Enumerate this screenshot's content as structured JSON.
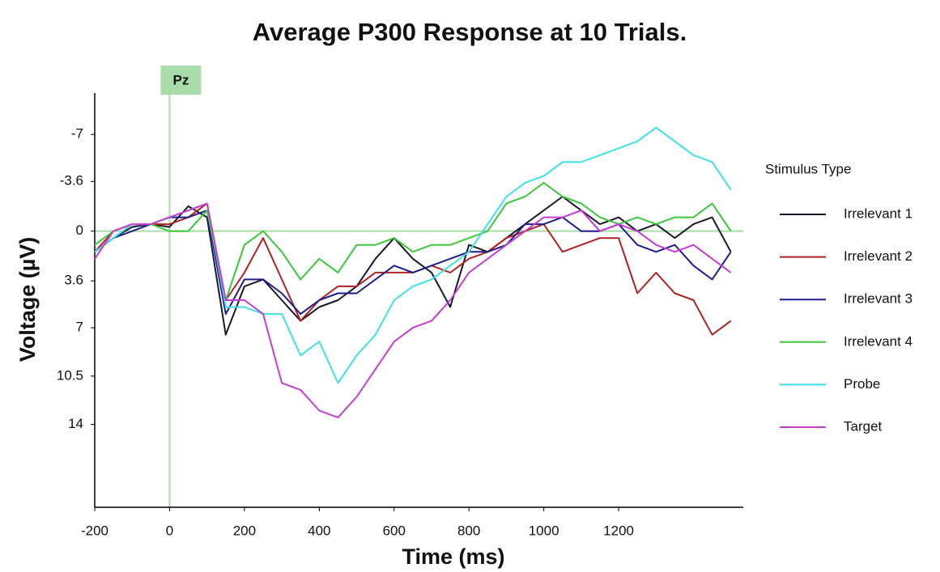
{
  "chart_data": {
    "type": "line",
    "title": "Average P300 Response at 10 Trials.",
    "x_label": "Time (ms)",
    "y_label": "Voltage (µV)",
    "legend_title": "Stimulus Type",
    "legend": "right",
    "annotation": "Pz",
    "vline_x": 0,
    "hline_y": 0,
    "reference_color": "#a8dca8",
    "x": [
      -200,
      -150,
      -100,
      -50,
      0,
      50,
      100,
      150,
      200,
      250,
      300,
      350,
      400,
      450,
      500,
      550,
      600,
      650,
      700,
      750,
      800,
      850,
      900,
      950,
      1000,
      1050,
      1100,
      1150,
      1200,
      1250,
      1300,
      1350,
      1400,
      1450,
      1500
    ],
    "xlim": [
      -200,
      1533
    ],
    "xticks": [
      -200,
      0,
      200,
      400,
      600,
      800,
      1000,
      1200
    ],
    "ylim": [
      20,
      -10
    ],
    "yticks": [
      -7,
      -3.6,
      0,
      3.6,
      7,
      10.5,
      14
    ],
    "series": [
      {
        "name": "Irrelevant 1",
        "color": "#1a1a2e",
        "values": [
          1.5,
          0.5,
          -0.3,
          -0.5,
          -0.3,
          -1.8,
          -1,
          7.5,
          4,
          3.5,
          5,
          6.5,
          5.5,
          5,
          4,
          2,
          0.5,
          2,
          3,
          5.5,
          1,
          1.5,
          0.5,
          -0.5,
          -1.5,
          -2.5,
          -1.5,
          -0.5,
          -1,
          0,
          -0.5,
          0.5,
          -0.5,
          -1,
          1.5
        ]
      },
      {
        "name": "Irrelevant 2",
        "color": "#b22222",
        "values": [
          1.5,
          0,
          -0.5,
          -0.5,
          -0.5,
          -1,
          -2,
          5,
          3,
          0.5,
          3.5,
          6.5,
          5,
          4,
          4,
          3,
          3,
          3,
          2.5,
          3,
          2,
          1.5,
          0.5,
          0,
          -0.5,
          1.5,
          1,
          0.5,
          0.5,
          4.5,
          3,
          4.5,
          5,
          7.5,
          6.5
        ]
      },
      {
        "name": "Irrelevant 3",
        "color": "#1f1f8a",
        "values": [
          1.5,
          0.5,
          0,
          -0.5,
          -1,
          -1,
          -1.5,
          6,
          3.5,
          3.5,
          4.5,
          6,
          5,
          4.5,
          4.5,
          3.5,
          2.5,
          3,
          2.5,
          2,
          1.5,
          1.5,
          1,
          -0.5,
          -0.5,
          -1,
          0,
          0,
          -0.5,
          1,
          1.5,
          1,
          2.5,
          3.5,
          1.5
        ]
      },
      {
        "name": "Irrelevant 4",
        "color": "#3cc83c",
        "values": [
          1,
          0,
          -0.5,
          -0.5,
          0,
          0,
          -1.5,
          5,
          1,
          0,
          1.5,
          3.5,
          2,
          3,
          1,
          1,
          0.5,
          1.5,
          1,
          1,
          0.5,
          0,
          -2,
          -2.5,
          -3.5,
          -2.5,
          -2,
          -1,
          -0.5,
          -1,
          -0.5,
          -1,
          -1,
          -2,
          0
        ]
      },
      {
        "name": "Probe",
        "color": "#3fe0e8",
        "values": [
          1.5,
          0.5,
          -0.5,
          -0.5,
          -1,
          -1.5,
          -2,
          5.5,
          5.5,
          6,
          6,
          9,
          8,
          11,
          9,
          7.5,
          5,
          4,
          3.5,
          2.5,
          1.5,
          -0.5,
          -2.5,
          -3.5,
          -4,
          -5,
          -5,
          -5.5,
          -6,
          -6.5,
          -7.5,
          -6.5,
          -5.5,
          -5,
          -3
        ]
      },
      {
        "name": "Target",
        "color": "#c83cd0",
        "values": [
          2,
          0,
          -0.5,
          -0.5,
          -1,
          -1.5,
          -2,
          5,
          5,
          6,
          11,
          11.5,
          13,
          13.5,
          12,
          10,
          8,
          7,
          6.5,
          5,
          3,
          2,
          1,
          0,
          -1,
          -1,
          -1.5,
          0,
          -0.5,
          0,
          1,
          1.5,
          1,
          2,
          3
        ]
      }
    ]
  }
}
